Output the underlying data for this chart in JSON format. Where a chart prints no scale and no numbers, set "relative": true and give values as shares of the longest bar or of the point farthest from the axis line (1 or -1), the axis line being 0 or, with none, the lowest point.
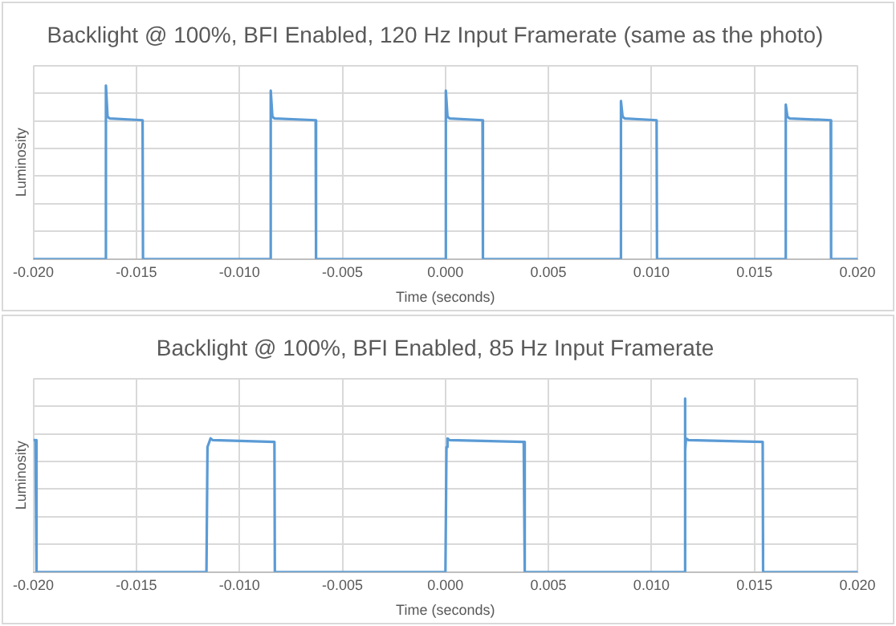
{
  "chart_data": [
    {
      "type": "line",
      "title": "Backlight @ 100%, BFI Enabled, 120 Hz Input Framerate (same as the photo)",
      "xlabel": "Time (seconds)",
      "ylabel": "Luminosity",
      "relative": true,
      "grid": true,
      "tick_labels": "x",
      "marker": "none",
      "legend": false,
      "xlim": [
        -0.02,
        0.02
      ],
      "xticks": [
        {
          "value": -0.02,
          "label": "-0.020"
        },
        {
          "value": -0.015,
          "label": "-0.015"
        },
        {
          "value": -0.01,
          "label": "-0.010"
        },
        {
          "value": -0.005,
          "label": "-0.005"
        },
        {
          "value": 0,
          "label": "0.000"
        },
        {
          "value": 0.005,
          "label": "0.005"
        },
        {
          "value": 0.01,
          "label": "0.010"
        },
        {
          "value": 0.015,
          "label": "0.015"
        },
        {
          "value": 0.02,
          "label": "0.020"
        }
      ],
      "series": [
        {
          "color": "#5b9bd5",
          "x": [
            -0.02,
            -0.0165,
            -0.01648,
            -0.0164,
            -0.0163,
            -0.0147,
            -0.01468,
            -0.0085,
            -0.00848,
            -0.0084,
            -0.0083,
            -0.0063,
            -0.00628,
            0.0,
            2e-05,
            0.0001,
            0.0002,
            0.0018,
            0.00182,
            0.0085,
            0.00852,
            0.0086,
            0.0087,
            0.01025,
            0.01027,
            0.0165,
            0.01652,
            0.0166,
            0.0167,
            0.0187,
            0.01872,
            0.02
          ],
          "values": [
            0,
            0,
            1,
            0.82,
            0.81,
            0.8,
            0,
            0,
            0.97,
            0.82,
            0.81,
            0.8,
            0,
            0,
            0.97,
            0.82,
            0.81,
            0.8,
            0,
            0,
            0.91,
            0.82,
            0.81,
            0.8,
            0,
            0,
            0.89,
            0.82,
            0.81,
            0.8,
            0,
            0
          ]
        }
      ]
    },
    {
      "type": "line",
      "title": "Backlight @ 100%, BFI Enabled, 85 Hz Input Framerate",
      "xlabel": "Time (seconds)",
      "ylabel": "Luminosity",
      "relative": true,
      "grid": true,
      "tick_labels": "x",
      "marker": "none",
      "legend": false,
      "xlim": [
        -0.02,
        0.02
      ],
      "xticks": [
        {
          "value": -0.02,
          "label": "-0.020"
        },
        {
          "value": -0.015,
          "label": "-0.015"
        },
        {
          "value": -0.01,
          "label": "-0.010"
        },
        {
          "value": -0.005,
          "label": "-0.005"
        },
        {
          "value": 0,
          "label": "0.000"
        },
        {
          "value": 0.005,
          "label": "0.005"
        },
        {
          "value": 0.01,
          "label": "0.010"
        },
        {
          "value": 0.015,
          "label": "0.015"
        },
        {
          "value": 0.02,
          "label": "0.020"
        }
      ],
      "series": [
        {
          "color": "#5b9bd5",
          "x": [
            -0.02,
            -0.0199,
            -0.01985,
            -0.0116,
            -0.01155,
            -0.0114,
            -0.0113,
            -0.0083,
            -0.00828,
            0.0,
            5e-05,
            0.0001,
            0.0002,
            0.0038,
            0.00385,
            0.0116,
            0.01162,
            0.01165,
            0.01168,
            0.0118,
            0.0154,
            0.01542,
            0.02
          ],
          "values": [
            0.76,
            0.76,
            0,
            0,
            0.72,
            0.77,
            0.76,
            0.75,
            0,
            0,
            0.72,
            0.77,
            0.76,
            0.75,
            0,
            0,
            1,
            0.7,
            0.77,
            0.76,
            0.75,
            0,
            0
          ]
        }
      ]
    }
  ]
}
